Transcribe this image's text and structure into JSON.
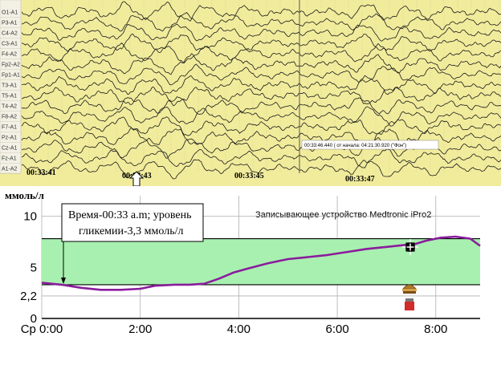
{
  "eeg": {
    "channels": [
      "O1-A1",
      "P3-A1",
      "C4-A2",
      "C3-A1",
      "F4-A2",
      "Fp2-A2",
      "Fp1-A1",
      "T3-A1",
      "T5-A1",
      "T4-A2",
      "F8-A2",
      "F7-A1",
      "Pz-A1",
      "Cz-A1",
      "Fz-A1",
      "A1-A2"
    ],
    "time_labels": [
      "00:33:41",
      "00:33:43",
      "00:33:45",
      "00:33:47"
    ],
    "tooltip": "00:33:46.440 ( от начала: 04:21:30.920 (\"Фон\")",
    "colors": {
      "background": "#f1ec9c",
      "trace": "#1a1a1a",
      "grid": "#b9b48a",
      "cursor": "#555555"
    }
  },
  "annotation": {
    "line1": "Время-00:33 a.m; уровень",
    "line2": "гликемии-3,3 ммоль/л"
  },
  "chart_data": {
    "type": "line",
    "ylabel": "ммоль/л",
    "title": "Записывающее устройство Medtronic iPro2",
    "x_tick_labels": [
      "Ср 0:00",
      "2:00",
      "4:00",
      "6:00",
      "8:00"
    ],
    "x_ticks_hours": [
      0,
      2,
      4,
      6,
      8
    ],
    "xlim_hours": [
      0,
      8.9
    ],
    "ylim": [
      0,
      12
    ],
    "y_tick_labels": [
      "0",
      "2,2",
      "5",
      "10"
    ],
    "y_ticks": [
      0,
      2.2,
      5,
      10
    ],
    "target_range": [
      3.3,
      7.8
    ],
    "series": [
      {
        "x_hours": [
          0,
          0.4,
          0.8,
          1.2,
          1.6,
          2.0,
          2.3,
          2.7,
          3.0,
          3.3,
          3.6,
          3.9,
          4.2,
          4.6,
          5.0,
          5.4,
          5.8,
          6.2,
          6.6,
          7.0,
          7.4,
          7.6,
          7.8,
          8.1,
          8.4,
          8.7,
          8.9
        ],
        "y": [
          3.5,
          3.3,
          3.0,
          2.8,
          2.8,
          2.9,
          3.2,
          3.3,
          3.3,
          3.4,
          3.9,
          4.5,
          4.9,
          5.4,
          5.8,
          6.0,
          6.2,
          6.5,
          6.8,
          7.0,
          7.2,
          7.3,
          7.6,
          7.9,
          8.0,
          7.8,
          7.1
        ]
      }
    ],
    "colors": {
      "target_fill": "#a8f0b0",
      "line": "#8a1c9c",
      "grid": "#b0b0b0",
      "band_edge": "#000000"
    }
  }
}
